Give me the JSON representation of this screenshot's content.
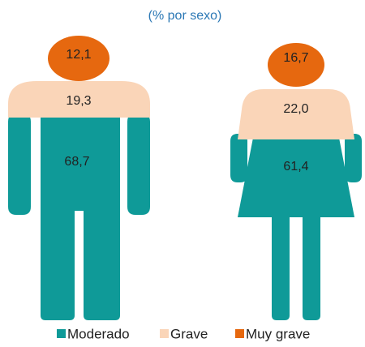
{
  "chart_data": {
    "type": "pictogram",
    "subtitle": "(% por sexo)",
    "categories": [
      null,
      null
    ],
    "series": [
      {
        "name": "Moderado",
        "color": "#0f9a98",
        "values": [
          68.7,
          61.4
        ],
        "value_labels": [
          "68,7",
          "61,4"
        ]
      },
      {
        "name": "Grave",
        "color": "#fad5b8",
        "values": [
          19.3,
          22.0
        ],
        "value_labels": [
          "19,3",
          "22,0"
        ]
      },
      {
        "name": "Muy grave",
        "color": "#e6680f",
        "values": [
          12.1,
          16.7
        ],
        "value_labels": [
          "12,1",
          "16,7"
        ]
      }
    ],
    "legend": "bottom"
  }
}
